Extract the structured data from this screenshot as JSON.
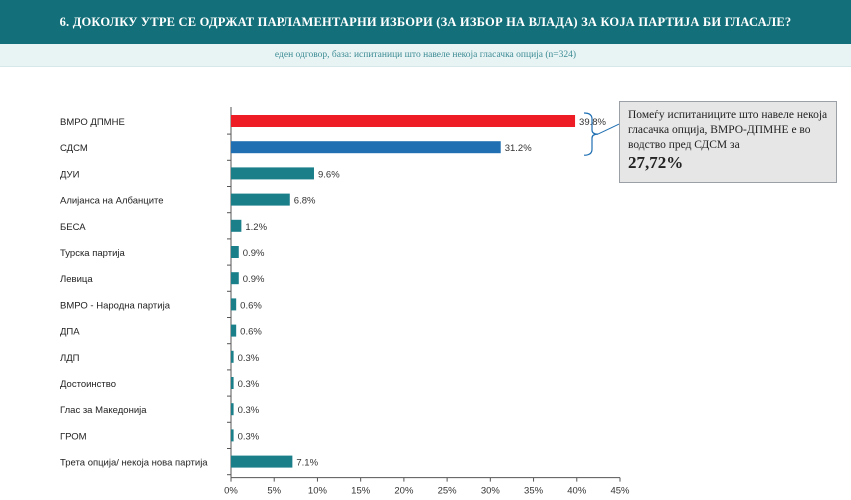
{
  "header": {
    "title": "6. ДОКОЛКУ УТРЕ СЕ ОДРЖАТ ПАРЛАМЕНТАРНИ ИЗБОРИ (ЗА ИЗБОР НА ВЛАДА) ЗА КОЈА ПАРТИЈА БИ ГЛАСАЛЕ?",
    "subtitle": "еден одговор, база: испитаници што навеле некоја гласачка опција (n=324)"
  },
  "callout": {
    "text": "Помеѓу испитаниците што навеле некоја гласачка опција, ВМРО-ДПМНЕ е во водство пред СДСМ за",
    "value": "27,72%"
  },
  "colors": {
    "header_bg": "#13707a",
    "bar_default": "#1b7f8a",
    "bar_vmro": "#ee1c25",
    "bar_sdsm": "#1f6fb2"
  },
  "chart_data": {
    "type": "bar",
    "orientation": "horizontal",
    "categories": [
      "ВМРО ДПМНЕ",
      "СДСМ",
      "ДУИ",
      "Алијанса на Албанците",
      "БЕСА",
      "Турска партија",
      "Левица",
      "ВМРО - Народна партија",
      "ДПА",
      "ЛДП",
      "Достоинство",
      "Глас за Македонија",
      "ГРОМ",
      "Трета опција/ некоја нова партија"
    ],
    "values": [
      39.8,
      31.2,
      9.6,
      6.8,
      1.2,
      0.9,
      0.9,
      0.6,
      0.6,
      0.3,
      0.3,
      0.3,
      0.3,
      7.1
    ],
    "value_labels": [
      "39.8%",
      "31.2%",
      "9.6%",
      "6.8%",
      "1.2%",
      "0.9%",
      "0.9%",
      "0.6%",
      "0.6%",
      "0.3%",
      "0.3%",
      "0.3%",
      "0.3%",
      "7.1%"
    ],
    "bar_colors": [
      "#ee1c25",
      "#1f6fb2",
      "#1b7f8a",
      "#1b7f8a",
      "#1b7f8a",
      "#1b7f8a",
      "#1b7f8a",
      "#1b7f8a",
      "#1b7f8a",
      "#1b7f8a",
      "#1b7f8a",
      "#1b7f8a",
      "#1b7f8a",
      "#1b7f8a"
    ],
    "xlim": [
      0,
      45
    ],
    "xticks": [
      0,
      5,
      10,
      15,
      20,
      25,
      30,
      35,
      40,
      45
    ],
    "xtick_labels": [
      "0%",
      "5%",
      "10%",
      "15%",
      "20%",
      "25%",
      "30%",
      "35%",
      "40%",
      "45%"
    ],
    "grid": false,
    "legend": "none"
  }
}
